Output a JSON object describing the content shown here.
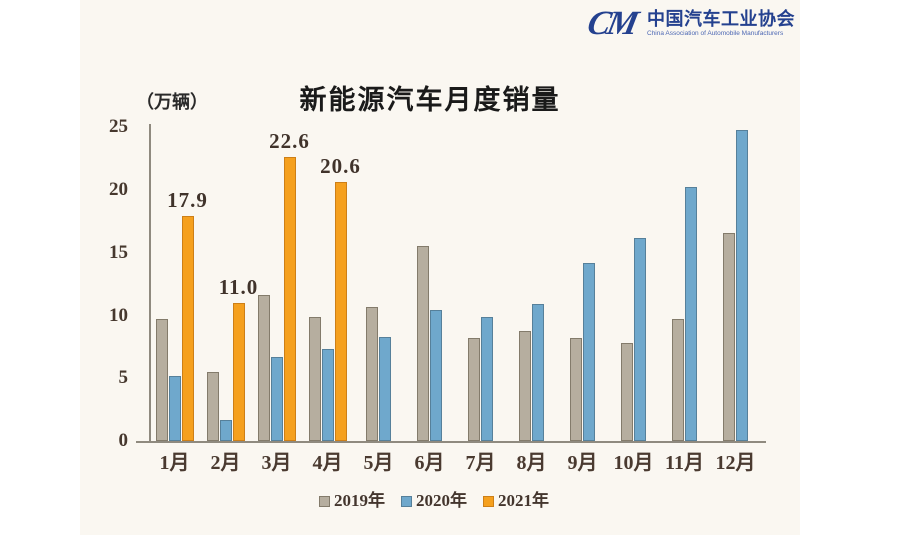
{
  "logo": {
    "mark": "CM",
    "name_cn": "中国汽车工业协会",
    "name_en": "China Association of Automobile Manufacturers"
  },
  "chart_data": {
    "type": "bar",
    "title": "新能源汽车月度销量",
    "unit_label": "（万辆）",
    "categories": [
      "1月",
      "2月",
      "3月",
      "4月",
      "5月",
      "6月",
      "7月",
      "8月",
      "9月",
      "10月",
      "11月",
      "12月"
    ],
    "series": [
      {
        "name": "2019年",
        "color": "#b6ae9f",
        "border_color": "#837b6b",
        "values": [
          9.7,
          5.5,
          11.6,
          9.9,
          10.7,
          15.5,
          8.2,
          8.8,
          8.2,
          7.8,
          9.7,
          16.6
        ]
      },
      {
        "name": "2020年",
        "color": "#6fa8cc",
        "border_color": "#56809a",
        "values": [
          5.2,
          1.7,
          6.7,
          7.3,
          8.3,
          10.4,
          9.9,
          10.9,
          14.2,
          16.2,
          20.2,
          24.8
        ]
      },
      {
        "name": "2021年",
        "color": "#f5a01e",
        "border_color": "#cd7f17",
        "values": [
          17.9,
          11.0,
          22.6,
          20.6,
          null,
          null,
          null,
          null,
          null,
          null,
          null,
          null
        ],
        "data_labels": [
          "17.9",
          "11.0",
          "22.6",
          "20.6"
        ]
      }
    ],
    "y_ticks": [
      0,
      5,
      10,
      15,
      20,
      25
    ],
    "ylim": [
      0,
      25
    ],
    "grid": false,
    "legend_position": "bottom"
  },
  "colors": {
    "background": "#ffffff",
    "panel_background": "#faf7f1",
    "axis": "#8f8a7f",
    "tick_text": "#46382e",
    "title_text": "#1a1a1a",
    "logo_blue": "#24418f"
  }
}
